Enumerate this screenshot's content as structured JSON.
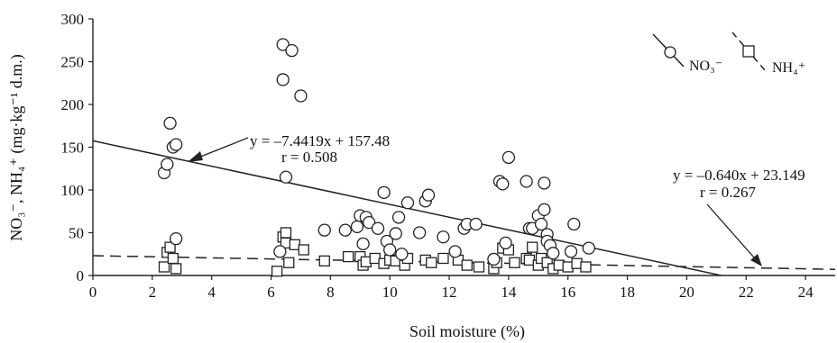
{
  "chart_data": {
    "type": "scatter",
    "xlabel": "Soil moisture (%)",
    "ylabel": "NO₃⁻, NH₄⁺ (mg·kg⁻¹ d.m.)",
    "xlim": [
      0,
      25
    ],
    "ylim": [
      0,
      300
    ],
    "x_ticks": [
      "0",
      "2",
      "4",
      "6",
      "8",
      "10",
      "12",
      "14",
      "16",
      "18",
      "20",
      "22",
      "24"
    ],
    "y_ticks": [
      "0",
      "50",
      "100",
      "150",
      "200",
      "250",
      "300"
    ],
    "grid": false,
    "legend_position": "top-right",
    "legend": [
      {
        "label": "NO₃⁻",
        "marker": "circle",
        "line": "solid"
      },
      {
        "label": "NH₄⁺",
        "marker": "square",
        "line": "dashed"
      }
    ],
    "series": [
      {
        "name": "NO₃⁻",
        "marker": "circle",
        "points": [
          [
            2.4,
            120
          ],
          [
            2.5,
            130
          ],
          [
            2.6,
            178
          ],
          [
            2.7,
            150
          ],
          [
            2.8,
            153
          ],
          [
            2.8,
            43
          ],
          [
            6.3,
            28
          ],
          [
            6.4,
            229
          ],
          [
            6.4,
            270
          ],
          [
            6.5,
            115
          ],
          [
            6.7,
            263
          ],
          [
            7.0,
            210
          ],
          [
            7.8,
            53
          ],
          [
            8.5,
            53
          ],
          [
            8.9,
            57
          ],
          [
            9.0,
            70
          ],
          [
            9.2,
            68
          ],
          [
            9.1,
            37
          ],
          [
            9.3,
            62
          ],
          [
            9.6,
            55
          ],
          [
            9.8,
            97
          ],
          [
            9.9,
            40
          ],
          [
            10.0,
            30
          ],
          [
            10.2,
            49
          ],
          [
            10.3,
            68
          ],
          [
            10.4,
            25
          ],
          [
            10.6,
            85
          ],
          [
            11.0,
            50
          ],
          [
            11.2,
            87
          ],
          [
            11.3,
            94
          ],
          [
            11.8,
            45
          ],
          [
            12.2,
            28
          ],
          [
            12.5,
            55
          ],
          [
            12.6,
            60
          ],
          [
            12.9,
            60
          ],
          [
            13.5,
            19
          ],
          [
            13.7,
            110
          ],
          [
            13.8,
            107
          ],
          [
            13.9,
            38
          ],
          [
            14.0,
            138
          ],
          [
            14.6,
            110
          ],
          [
            14.7,
            55
          ],
          [
            14.8,
            55
          ],
          [
            15.0,
            70
          ],
          [
            15.1,
            60
          ],
          [
            15.2,
            108
          ],
          [
            15.2,
            77
          ],
          [
            15.3,
            48
          ],
          [
            15.3,
            40
          ],
          [
            15.4,
            35
          ],
          [
            15.5,
            26
          ],
          [
            16.1,
            28
          ],
          [
            16.2,
            60
          ],
          [
            16.7,
            32
          ]
        ],
        "trendline": {
          "slope": -7.4419,
          "intercept": 157.48,
          "style": "solid"
        },
        "equation": "y = –7.4419x + 157.48",
        "r": "r = 0.508"
      },
      {
        "name": "NH₄⁺",
        "marker": "square",
        "points": [
          [
            2.4,
            10
          ],
          [
            2.5,
            27
          ],
          [
            2.6,
            33
          ],
          [
            2.7,
            20
          ],
          [
            2.8,
            8
          ],
          [
            6.2,
            5
          ],
          [
            6.4,
            45
          ],
          [
            6.5,
            50
          ],
          [
            6.5,
            38
          ],
          [
            6.8,
            36
          ],
          [
            7.1,
            30
          ],
          [
            6.6,
            15
          ],
          [
            7.8,
            17
          ],
          [
            8.6,
            22
          ],
          [
            9.0,
            22
          ],
          [
            9.1,
            12
          ],
          [
            9.2,
            16
          ],
          [
            9.5,
            20
          ],
          [
            9.8,
            14
          ],
          [
            10.0,
            18
          ],
          [
            10.2,
            17
          ],
          [
            10.5,
            12
          ],
          [
            10.6,
            20
          ],
          [
            11.2,
            18
          ],
          [
            11.4,
            15
          ],
          [
            11.8,
            20
          ],
          [
            12.3,
            18
          ],
          [
            12.6,
            12
          ],
          [
            13.0,
            10
          ],
          [
            13.5,
            8
          ],
          [
            13.6,
            15
          ],
          [
            13.8,
            32
          ],
          [
            14.0,
            30
          ],
          [
            14.2,
            15
          ],
          [
            14.6,
            20
          ],
          [
            14.7,
            18
          ],
          [
            14.8,
            33
          ],
          [
            15.0,
            12
          ],
          [
            15.1,
            20
          ],
          [
            15.3,
            15
          ],
          [
            15.5,
            8
          ],
          [
            15.7,
            12
          ],
          [
            16.0,
            10
          ],
          [
            16.3,
            14
          ],
          [
            16.6,
            10
          ]
        ],
        "trendline": {
          "slope": -0.64,
          "intercept": 23.149,
          "style": "dashed"
        },
        "equation": "y = –0.640x + 23.149",
        "r": "r = 0.267"
      }
    ]
  }
}
